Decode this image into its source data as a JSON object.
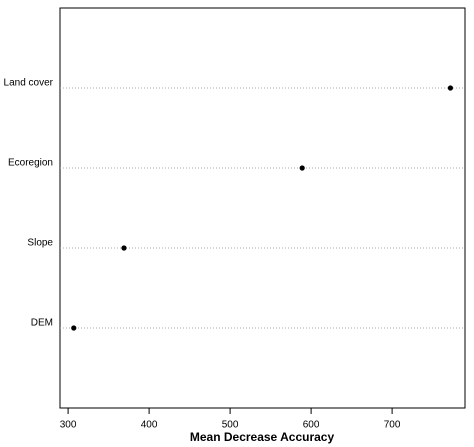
{
  "chart_data": {
    "type": "dot",
    "x_label": "Mean Decrease Accuracy",
    "categories": [
      "Land cover",
      "Ecoregion",
      "Slope",
      "DEM"
    ],
    "values": [
      772,
      589,
      369,
      307
    ],
    "color": "#000000",
    "xlim": [
      290,
      790
    ],
    "xticks": [
      300,
      400,
      500,
      600,
      700
    ],
    "grid": true
  }
}
